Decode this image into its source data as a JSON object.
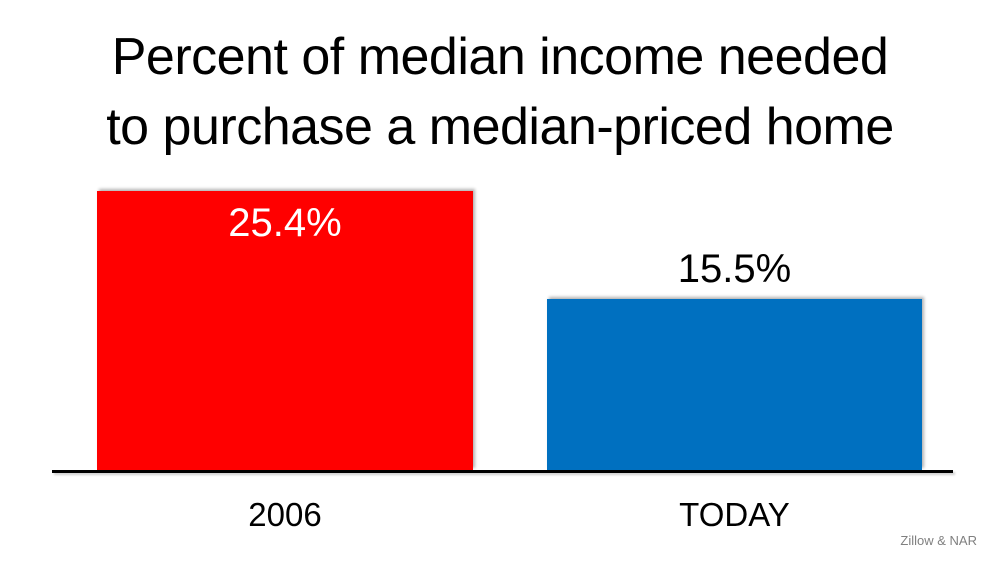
{
  "title": {
    "line1": "Percent of median income needed",
    "line2": "to purchase a median-priced home"
  },
  "chart_data": {
    "type": "bar",
    "title": "Percent of median income needed to purchase a median-priced home",
    "categories": [
      "2006",
      "TODAY"
    ],
    "values": [
      25.4,
      15.5
    ],
    "labels": [
      "25.4%",
      "15.5%"
    ],
    "series_colors": [
      "#ff0000",
      "#0070c0"
    ],
    "label_positions": [
      "inside-top",
      "above"
    ],
    "label_colors": [
      "#ffffff",
      "#000000"
    ],
    "xlabel": "",
    "ylabel": "",
    "ylim": [
      0,
      26
    ],
    "grid": false,
    "legend": "none",
    "source": "Zillow & NAR"
  },
  "attribution": "Zillow & NAR",
  "colors": {
    "background": "#ffffff",
    "bar_2006": "#ff0000",
    "bar_today": "#0070c0",
    "axis": "#000000",
    "title_text": "#000000",
    "attribution_text": "#808080"
  }
}
